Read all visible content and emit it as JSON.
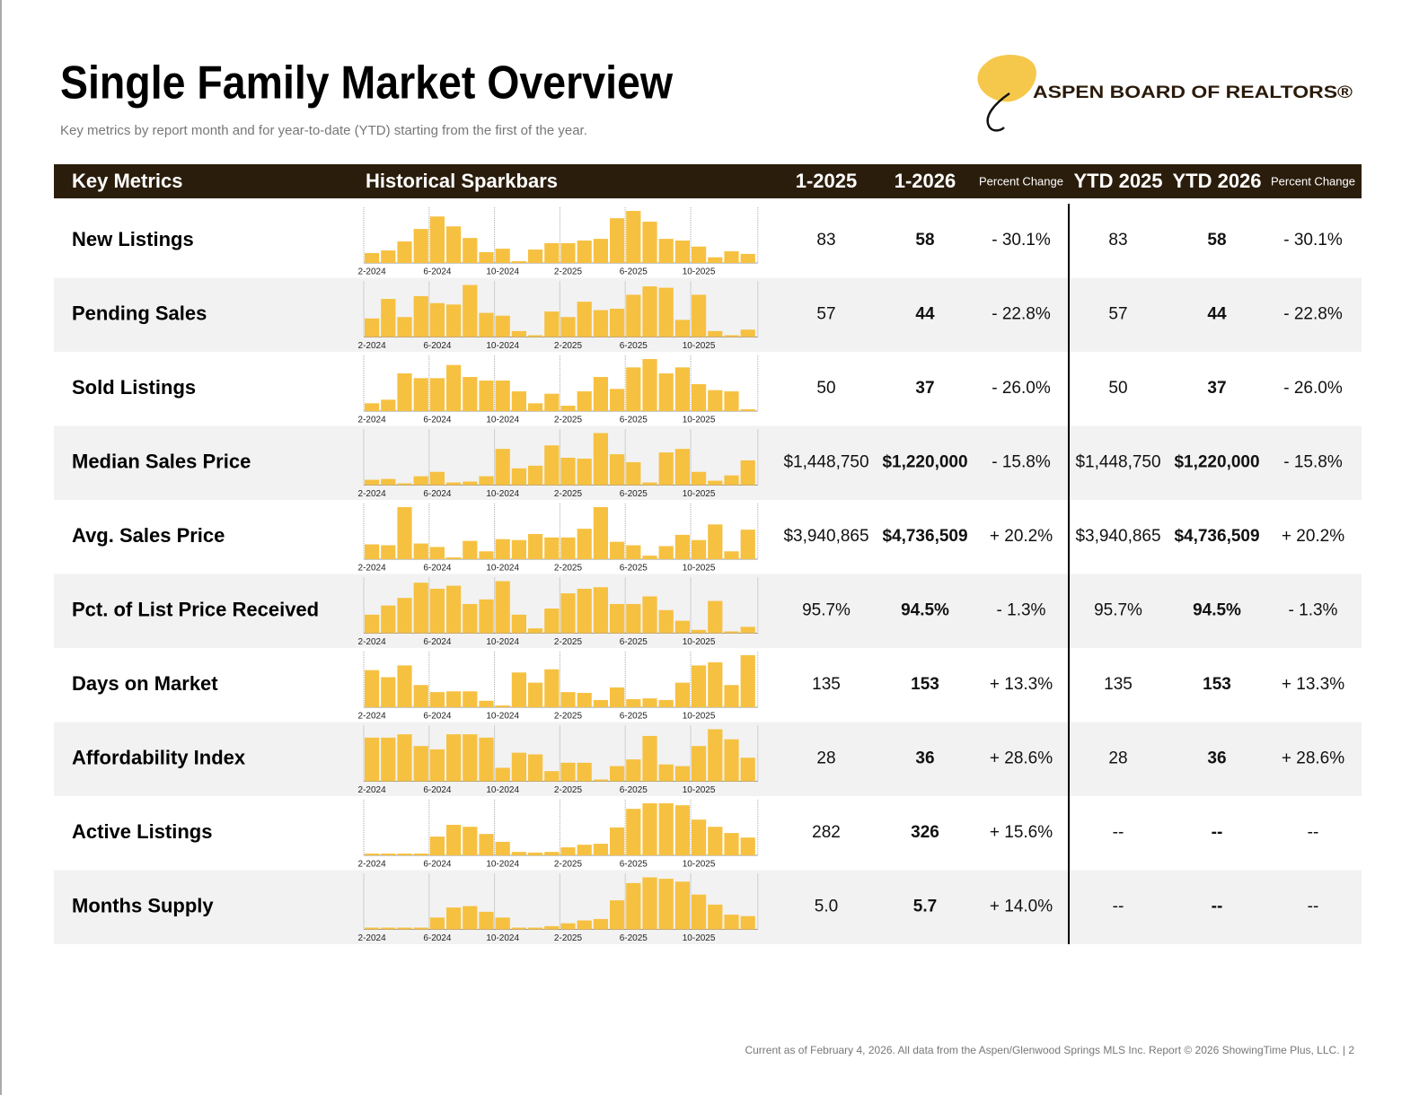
{
  "header": {
    "title": "Single Family Market Overview",
    "subtitle": "Key metrics by report month and for year-to-date (YTD) starting from the first of the year.",
    "logo_text": "ASPEN BOARD OF REALTORS®"
  },
  "table": {
    "columns": [
      "Key Metrics",
      "Historical Sparkbars",
      "1-2025",
      "1-2026",
      "Percent Change",
      "YTD 2025",
      "YTD 2026",
      "Percent Change"
    ],
    "sparkbar_months": [
      "2-2024",
      null,
      null,
      null,
      "6-2024",
      null,
      null,
      null,
      "10-2024",
      null,
      null,
      null,
      "2-2025",
      null,
      null,
      null,
      "6-2025",
      null,
      null,
      null,
      "10-2025",
      null,
      null,
      null
    ],
    "rows": [
      {
        "metric": "New Listings",
        "sparkbars": [
          60,
          66,
          87,
          116,
          145,
          122,
          95,
          62,
          70,
          41,
          68,
          83,
          83,
          89,
          93,
          141,
          158,
          133,
          93,
          89,
          75,
          50,
          64,
          58
        ],
        "cells": [
          "83",
          "58",
          "- 30.1%",
          "83",
          "58",
          "- 30.1%"
        ]
      },
      {
        "metric": "Pending Sales",
        "sparkbars": [
          52,
          66,
          53,
          68,
          63,
          62,
          76,
          56,
          54,
          43,
          40,
          57,
          53,
          64,
          58,
          59,
          69,
          75,
          74,
          51,
          69,
          43,
          40,
          44
        ],
        "cells": [
          "57",
          "44",
          "- 22.8%",
          "57",
          "44",
          "- 22.8%"
        ]
      },
      {
        "metric": "Sold Listings",
        "sparkbars": [
          42,
          45,
          67,
          63,
          63,
          74,
          64,
          61,
          61,
          52,
          42,
          50,
          40,
          52,
          64,
          54,
          72,
          79,
          67,
          72,
          58,
          53,
          52,
          37
        ],
        "cells": [
          "50",
          "37",
          "- 26.0%",
          "50",
          "37",
          "- 26.0%"
        ]
      },
      {
        "metric": "Median Sales Price",
        "sparkbars": [
          924000,
          937000,
          870000,
          978000,
          1045000,
          883000,
          897000,
          978000,
          1395000,
          1099000,
          1139000,
          1448750,
          1260000,
          1247000,
          1637000,
          1314000,
          1193000,
          883000,
          1341000,
          1395000,
          1045000,
          910000,
          991000,
          1220000
        ],
        "cells": [
          "$1,448,750",
          "$1,220,000",
          "- 15.8%",
          "$1,448,750",
          "$1,220,000",
          "- 15.8%"
        ]
      },
      {
        "metric": "Avg. Sales Price",
        "sparkbars": [
          3234000,
          3145000,
          7035000,
          3322000,
          2968000,
          1908000,
          3587000,
          2526000,
          3764000,
          3676000,
          4294000,
          3940865,
          3941000,
          4825000,
          7035000,
          3499000,
          3145000,
          2084000,
          3057000,
          4206000,
          3676000,
          5267000,
          2526000,
          4736509
        ],
        "cells": [
          "$3,940,865",
          "$4,736,509",
          "+ 20.2%",
          "$3,940,865",
          "$4,736,509",
          "+ 20.2%"
        ]
      },
      {
        "metric": "Pct. of List Price Received",
        "sparkbars": [
          95.3,
          95.9,
          96.4,
          97.4,
          97.0,
          97.2,
          96.0,
          96.3,
          97.5,
          95.3,
          94.4,
          95.7,
          96.7,
          97.0,
          97.1,
          96.0,
          96.0,
          96.5,
          95.6,
          94.9,
          94.3,
          96.2,
          94.2,
          94.5
        ],
        "cells": [
          "95.7%",
          "94.5%",
          "- 1.3%",
          "95.7%",
          "94.5%",
          "- 1.3%"
        ]
      },
      {
        "metric": "Days on Market",
        "sparkbars": [
          134,
          125,
          140,
          115,
          106,
          107,
          107,
          95,
          89,
          131,
          118,
          135,
          106,
          105,
          96,
          112,
          97,
          98,
          96,
          118,
          140,
          144,
          115,
          153
        ],
        "cells": [
          "135",
          "153",
          "+ 13.3%",
          "135",
          "153",
          "+ 13.3%"
        ]
      },
      {
        "metric": "Affordability Index",
        "sparkbars": [
          48,
          48,
          50,
          43,
          41,
          50,
          50,
          48,
          30,
          39,
          38,
          28,
          33,
          33,
          23,
          31,
          35,
          49,
          32,
          31,
          43,
          53,
          47,
          36
        ],
        "cells": [
          "28",
          "36",
          "+ 28.6%",
          "28",
          "36",
          "+ 28.6%"
        ]
      },
      {
        "metric": "Active Listings",
        "sparkbars": [
          277,
          277,
          277,
          277,
          329,
          365,
          359,
          337,
          313,
          282,
          280,
          282,
          296,
          304,
          307,
          357,
          414,
          431,
          431,
          425,
          381,
          359,
          340,
          326
        ],
        "cells": [
          "282",
          "326",
          "+ 15.6%",
          "--",
          "--",
          "--"
        ]
      },
      {
        "metric": "Months Supply",
        "sparkbars": [
          4.9,
          4.9,
          4.9,
          4.9,
          5.6,
          6.3,
          6.4,
          6.0,
          5.6,
          4.9,
          4.9,
          5.0,
          5.2,
          5.4,
          5.5,
          6.8,
          8.0,
          8.4,
          8.3,
          8.1,
          7.2,
          6.5,
          5.8,
          5.7
        ],
        "cells": [
          "5.0",
          "5.7",
          "+ 14.0%",
          "--",
          "--",
          "--"
        ]
      }
    ]
  },
  "footer": "Current as of February 4, 2026. All data from the Aspen/Glenwood Springs MLS Inc. Report © 2026 ShowingTime Plus, LLC.  |  2"
}
